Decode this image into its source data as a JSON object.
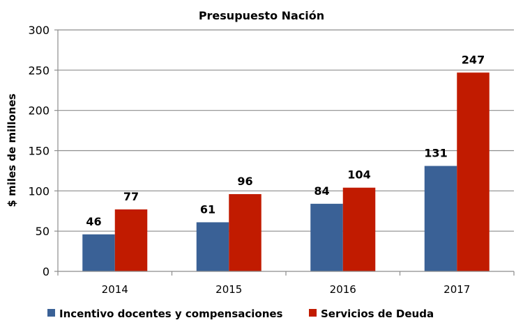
{
  "chart_data": {
    "type": "bar",
    "title": "Presupuesto Nación",
    "xlabel": "",
    "ylabel": "$ miles de millones",
    "ylim": [
      0,
      300
    ],
    "yticks": [
      0,
      50,
      100,
      150,
      200,
      250,
      300
    ],
    "grid": true,
    "categories": [
      "2014",
      "2015",
      "2016",
      "2017"
    ],
    "series": [
      {
        "name": "Incentivo docentes y compensaciones",
        "color": "#3a6196",
        "values": [
          46,
          61,
          84,
          131
        ]
      },
      {
        "name": "Servicios de Deuda",
        "color": "#c11b00",
        "values": [
          77,
          96,
          104,
          247
        ]
      }
    ],
    "legend_position": "bottom"
  }
}
